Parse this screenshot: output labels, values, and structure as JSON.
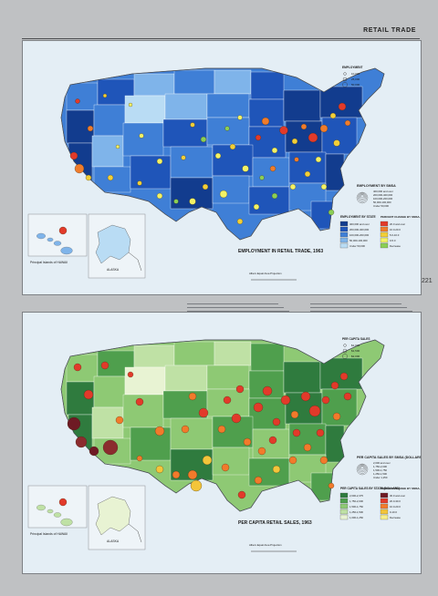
{
  "page": {
    "title": "RETAIL TRADE",
    "page_number": "221"
  },
  "colors": {
    "page_bg": "#bfc1c3",
    "map_bg": "#e4eef5",
    "employment_states": [
      "#b9dcf4",
      "#7fb4ea",
      "#3f7fd6",
      "#1f55b9",
      "#123c8e"
    ],
    "employment_dots": [
      "#e23a2a",
      "#f07c2b",
      "#f2cf37",
      "#f3f265",
      "#8bcf55"
    ],
    "sales_states": [
      "#e8f3d3",
      "#bfe1a5",
      "#8ec974",
      "#4f9f4d",
      "#2f7b3e"
    ],
    "sales_dots": [
      "#e23a2a",
      "#f27a2b",
      "#f3c53a",
      "#6e1a24",
      "#8b2c2e"
    ]
  },
  "map1": {
    "title": "EMPLOYMENT IN RETAIL TRADE, 1963",
    "legend_top": {
      "heading": "EMPLOYMENT",
      "items": [
        "10,000",
        "25,000",
        "50,000"
      ]
    },
    "legend_smsa": {
      "heading": "EMPLOYMENT BY SMSA",
      "items": [
        "400,000 and over",
        "200,000-400,000",
        "100,000-200,000",
        "50,000-100,000",
        "Under 50,000"
      ]
    },
    "legend_state": {
      "heading": "EMPLOYMENT BY STATE",
      "items": [
        "400,000 and over",
        "200,000-400,000",
        "100,000-200,000",
        "50,000-100,000",
        "Under 50,000"
      ]
    },
    "legend_change": {
      "heading": "PERCENT CHANGE BY SMSA, 1958-1963",
      "items": [
        "20.0 and over",
        "10.0-20.0",
        "5.0-10.0",
        "0-5.0",
        "Decrease"
      ]
    },
    "inset_hawaii": "Principal Islands of HAWAII",
    "inset_alaska": "ALASKA",
    "projection": "Albers Equal Area Projection"
  },
  "map2": {
    "title": "PER CAPITA RETAIL SALES, 1963",
    "legend_top": {
      "heading": "PER CAPITA SALES",
      "items": [
        "$1,000",
        "$1,500",
        "$2,000"
      ]
    },
    "legend_smsa": {
      "heading": "PER CAPITA SALES BY SMSA (DOLLARS)",
      "items": [
        "2,000 and over",
        "1,750-2,000",
        "1,500-1,750",
        "1,250-1,500",
        "Under 1,250"
      ]
    },
    "legend_state": {
      "heading": "PER CAPITA SALES BY STATE (DOLLARS)",
      "items": [
        "2,000-2,375",
        "1,750-2,000",
        "1,500-1,750",
        "1,250-1,500",
        "1,000-1,250"
      ]
    },
    "legend_change": {
      "heading": "PERCENT CHANGE BY SMSA, 1958-1963",
      "items": [
        "30.0 and over",
        "20.0-30.0",
        "10.0-20.0",
        "0-10.0",
        "Decrease"
      ]
    },
    "inset_hawaii": "Principal Islands of HAWAII",
    "inset_alaska": "ALASKA",
    "projection": "Albers Equal Area Projection"
  }
}
